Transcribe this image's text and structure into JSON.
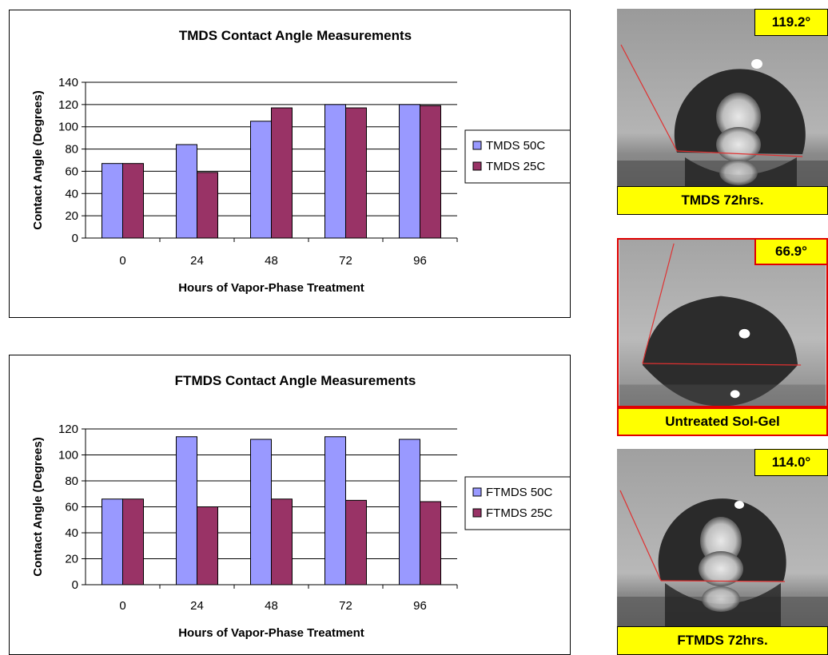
{
  "chart_data": [
    {
      "type": "bar",
      "title": "TMDS Contact Angle Measurements",
      "xlabel": "Hours of Vapor-Phase Treatment",
      "ylabel": "Contact Angle (Degrees)",
      "categories": [
        "0",
        "24",
        "48",
        "72",
        "96"
      ],
      "ylim": [
        0,
        140
      ],
      "yticks": [
        "0",
        "20",
        "40",
        "60",
        "80",
        "100",
        "120",
        "140"
      ],
      "grid": true,
      "legend": "right",
      "series": [
        {
          "name": "TMDS 50C",
          "color": "#9999ff",
          "values": [
            67,
            84,
            105,
            120,
            120
          ]
        },
        {
          "name": "TMDS 25C",
          "color": "#993366",
          "values": [
            67,
            59,
            117,
            117,
            119
          ]
        }
      ]
    },
    {
      "type": "bar",
      "title": "FTMDS Contact Angle Measurements",
      "xlabel": "Hours of Vapor-Phase Treatment",
      "ylabel": "Contact Angle (Degrees)",
      "categories": [
        "0",
        "24",
        "48",
        "72",
        "96"
      ],
      "ylim": [
        0,
        120
      ],
      "yticks": [
        "0",
        "20",
        "40",
        "60",
        "80",
        "100",
        "120"
      ],
      "grid": true,
      "legend": "right",
      "series": [
        {
          "name": "FTMDS 50C",
          "color": "#9999ff",
          "values": [
            66,
            114,
            112,
            114,
            112
          ]
        },
        {
          "name": "FTMDS 25C",
          "color": "#993366",
          "values": [
            66,
            60,
            66,
            65,
            64
          ]
        }
      ]
    }
  ],
  "droplets": [
    {
      "angle": "119.2°",
      "caption": "TMDS 72hrs."
    },
    {
      "angle": "66.9°",
      "caption": "Untreated Sol-Gel"
    },
    {
      "angle": "114.0°",
      "caption": "FTMDS 72hrs."
    }
  ]
}
